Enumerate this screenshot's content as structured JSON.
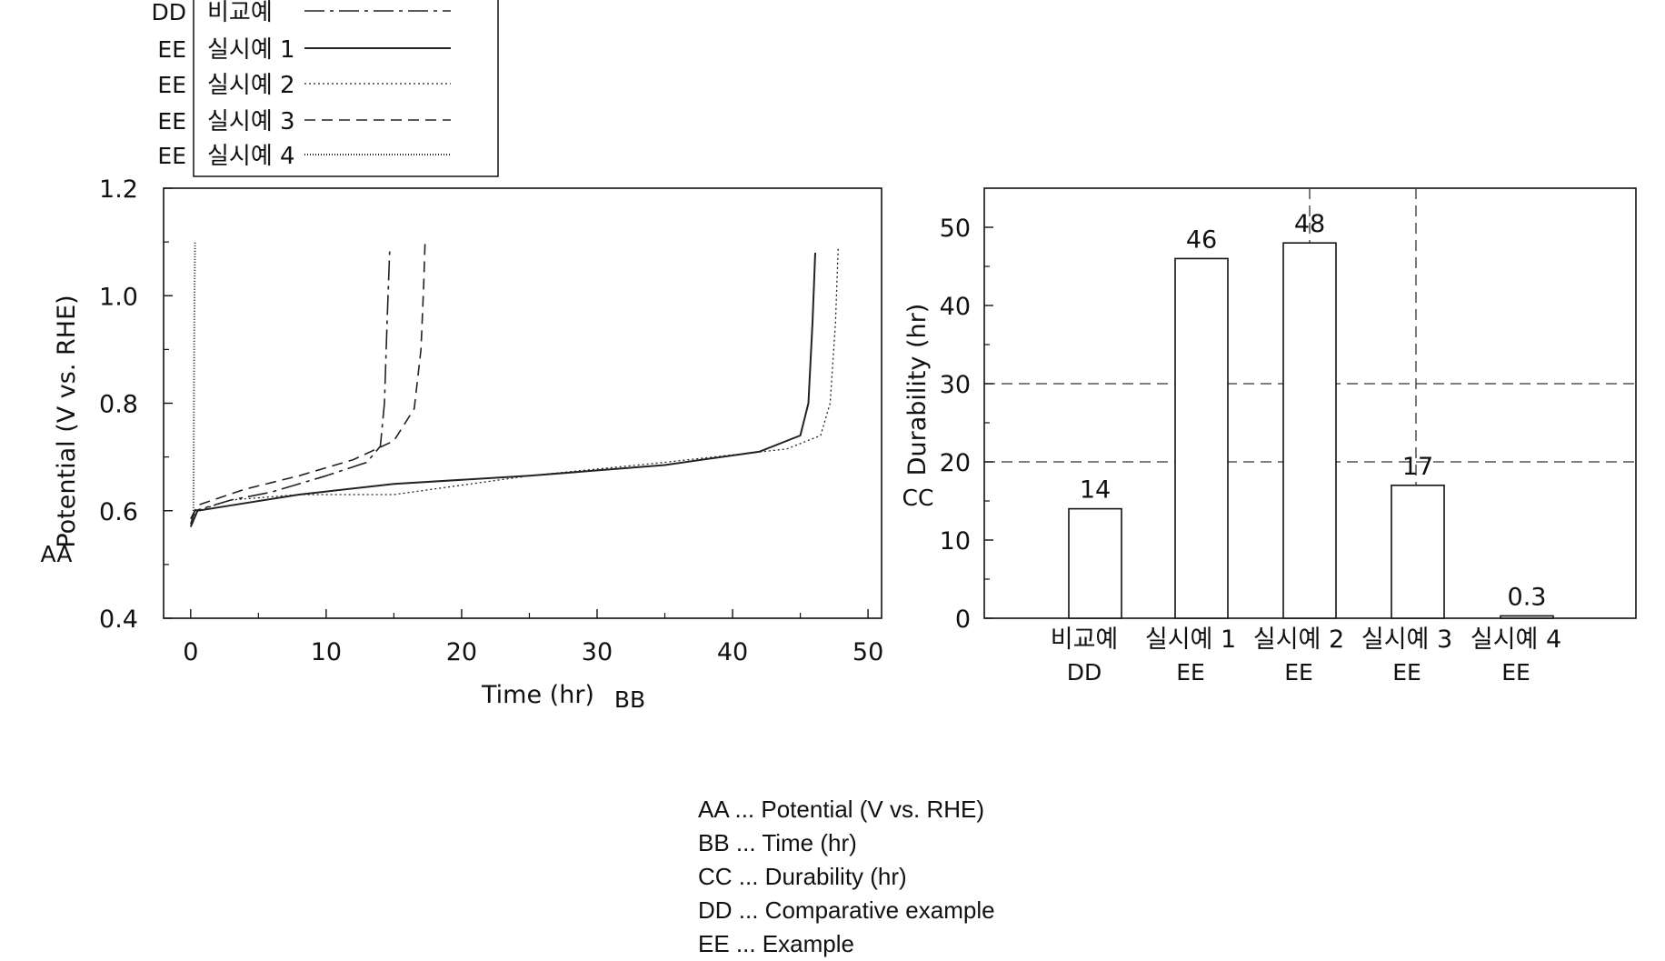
{
  "legend": {
    "entries": [
      {
        "tag": "DD",
        "label": "비교예",
        "dash": "22,6,4,6",
        "width": 1.6
      },
      {
        "tag": "EE",
        "label": "실시예 1",
        "dash": "",
        "width": 2.0
      },
      {
        "tag": "EE",
        "label": "실시예 2",
        "dash": "2,3",
        "width": 1.3
      },
      {
        "tag": "EE",
        "label": "실시예 3",
        "dash": "12,7",
        "width": 1.6
      },
      {
        "tag": "EE",
        "label": "실시예 4",
        "dash": "1,2",
        "width": 2.0
      }
    ]
  },
  "chart_data": [
    {
      "type": "line",
      "ylabel": "Potential (V vs. RHE)",
      "xlabel": "Time (hr)",
      "ylabel_tag": "AA",
      "xlabel_tag": "BB",
      "xlim": [
        -2,
        51
      ],
      "ylim": [
        0.4,
        1.2
      ],
      "xticks": [
        0,
        10,
        20,
        30,
        40,
        50
      ],
      "yticks": [
        0.4,
        0.6,
        0.8,
        1.0,
        1.2
      ],
      "series": [
        {
          "name": "비교예",
          "x": [
            0,
            0.3,
            3,
            6,
            10,
            13,
            14,
            14.3,
            14.5,
            14.7
          ],
          "y": [
            0.575,
            0.6,
            0.62,
            0.635,
            0.665,
            0.69,
            0.72,
            0.8,
            0.95,
            1.09
          ]
        },
        {
          "name": "실시예 1",
          "x": [
            0,
            0.5,
            3,
            8,
            15,
            25,
            35,
            42,
            45,
            45.6,
            45.9,
            46.1
          ],
          "y": [
            0.57,
            0.6,
            0.61,
            0.63,
            0.65,
            0.665,
            0.685,
            0.71,
            0.74,
            0.8,
            0.95,
            1.08
          ]
        },
        {
          "name": "실시예 2",
          "x": [
            0,
            0.5,
            3,
            8,
            15,
            25,
            35,
            44,
            46.5,
            47.2,
            47.6,
            47.8
          ],
          "y": [
            0.585,
            0.6,
            0.62,
            0.63,
            0.63,
            0.665,
            0.69,
            0.715,
            0.74,
            0.8,
            0.95,
            1.09
          ]
        },
        {
          "name": "실시예 3",
          "x": [
            0,
            0.5,
            4,
            8,
            12,
            15,
            16.5,
            17,
            17.2,
            17.3
          ],
          "y": [
            0.585,
            0.61,
            0.64,
            0.665,
            0.695,
            0.73,
            0.79,
            0.9,
            1.02,
            1.1
          ]
        },
        {
          "name": "실시예 4",
          "x": [
            0.2,
            0.22,
            0.25,
            0.27,
            0.3,
            0.32
          ],
          "y": [
            0.6,
            0.7,
            0.85,
            0.95,
            1.05,
            1.1
          ]
        }
      ]
    },
    {
      "type": "bar",
      "ylabel": "Durability (hr)",
      "ylabel_tag": "CC",
      "ylim": [
        0,
        55
      ],
      "yticks": [
        0,
        10,
        20,
        30,
        40,
        50
      ],
      "categories": [
        {
          "label": "비교예",
          "tag": "DD"
        },
        {
          "label": "실시예 1",
          "tag": "EE"
        },
        {
          "label": "실시예 2",
          "tag": "EE"
        },
        {
          "label": "실시예 3",
          "tag": "EE"
        },
        {
          "label": "실시예 4",
          "tag": "EE"
        }
      ],
      "values": [
        14,
        46,
        48,
        17,
        0.3
      ],
      "value_labels": [
        "14",
        "46",
        "48",
        "17",
        "0.3"
      ],
      "reference_lines": {
        "horizontal": [
          20,
          30
        ]
      }
    }
  ],
  "notes": [
    "AA ... Potential (V vs. RHE)",
    "BB ... Time (hr)",
    "CC ... Durability (hr)",
    "DD ... Comparative example",
    "EE ... Example"
  ]
}
